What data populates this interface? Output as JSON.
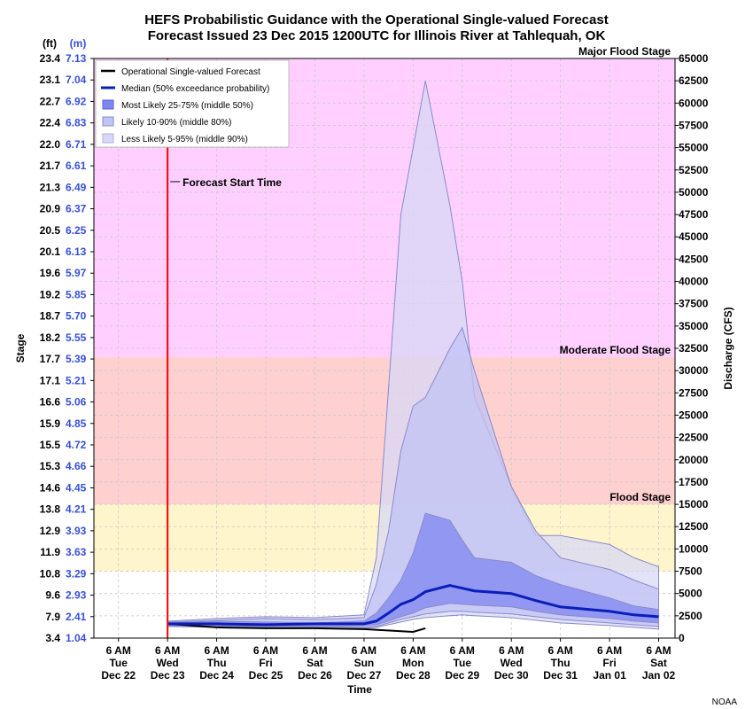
{
  "chart_data": {
    "type": "area",
    "title": "HEFS Probabilistic Guidance with the Operational Single-valued Forecast",
    "subtitle": "Forecast Issued 23 Dec 2015 1200UTC for Illinois River at Tahlequah, OK",
    "xlabel": "Time",
    "ylabel_left": "Stage",
    "ylabel_right": "Discharge (CFS)",
    "left_units": [
      "(ft)",
      "(m)"
    ],
    "credit": "NOAA",
    "xlim": [
      "2015-12-21T18:00",
      "2016-01-02T14:00"
    ],
    "ylim_discharge": [
      0,
      65000
    ],
    "grid": true,
    "legend_position": "top-left",
    "x_ticks": [
      {
        "time": "2015-12-22T06:00",
        "lines": [
          "6 AM",
          "Tue",
          "Dec 22"
        ]
      },
      {
        "time": "2015-12-23T06:00",
        "lines": [
          "6 AM",
          "Wed",
          "Dec 23"
        ]
      },
      {
        "time": "2015-12-24T06:00",
        "lines": [
          "6 AM",
          "Thu",
          "Dec 24"
        ]
      },
      {
        "time": "2015-12-25T06:00",
        "lines": [
          "6 AM",
          "Fri",
          "Dec 25"
        ]
      },
      {
        "time": "2015-12-26T06:00",
        "lines": [
          "6 AM",
          "Sat",
          "Dec 26"
        ]
      },
      {
        "time": "2015-12-27T06:00",
        "lines": [
          "6 AM",
          "Sun",
          "Dec 27"
        ]
      },
      {
        "time": "2015-12-28T06:00",
        "lines": [
          "6 AM",
          "Mon",
          "Dec 28"
        ]
      },
      {
        "time": "2015-12-29T06:00",
        "lines": [
          "6 AM",
          "Tue",
          "Dec 29"
        ]
      },
      {
        "time": "2015-12-30T06:00",
        "lines": [
          "6 AM",
          "Wed",
          "Dec 30"
        ]
      },
      {
        "time": "2015-12-31T06:00",
        "lines": [
          "6 AM",
          "Thu",
          "Dec 31"
        ]
      },
      {
        "time": "2016-01-01T06:00",
        "lines": [
          "6 AM",
          "Fri",
          "Jan 01"
        ]
      },
      {
        "time": "2016-01-02T06:00",
        "lines": [
          "6 AM",
          "Sat",
          "Jan 02"
        ]
      }
    ],
    "right_ticks": [
      0,
      2500,
      5000,
      7500,
      10000,
      12500,
      15000,
      17500,
      20000,
      22500,
      25000,
      27500,
      30000,
      32500,
      35000,
      37500,
      40000,
      42500,
      45000,
      47500,
      50000,
      52500,
      55000,
      57500,
      60000,
      62500,
      65000
    ],
    "left_ticks": [
      {
        "ft": "3.4",
        "m": "1.04"
      },
      {
        "ft": "7.9",
        "m": "2.41"
      },
      {
        "ft": "9.6",
        "m": "2.93"
      },
      {
        "ft": "10.8",
        "m": "3.29"
      },
      {
        "ft": "11.9",
        "m": "3.63"
      },
      {
        "ft": "12.9",
        "m": "3.93"
      },
      {
        "ft": "13.8",
        "m": "4.21"
      },
      {
        "ft": "14.6",
        "m": "4.45"
      },
      {
        "ft": "15.3",
        "m": "4.66"
      },
      {
        "ft": "15.5",
        "m": "4.72"
      },
      {
        "ft": "15.9",
        "m": "4.85"
      },
      {
        "ft": "16.6",
        "m": "5.06"
      },
      {
        "ft": "17.1",
        "m": "5.21"
      },
      {
        "ft": "17.7",
        "m": "5.39"
      },
      {
        "ft": "18.2",
        "m": "5.55"
      },
      {
        "ft": "18.7",
        "m": "5.70"
      },
      {
        "ft": "19.2",
        "m": "5.85"
      },
      {
        "ft": "19.6",
        "m": "5.97"
      },
      {
        "ft": "20.1",
        "m": "6.13"
      },
      {
        "ft": "20.5",
        "m": "6.25"
      },
      {
        "ft": "20.9",
        "m": "6.37"
      },
      {
        "ft": "21.3",
        "m": "6.49"
      },
      {
        "ft": "21.7",
        "m": "6.61"
      },
      {
        "ft": "22.0",
        "m": "6.71"
      },
      {
        "ft": "22.4",
        "m": "6.83"
      },
      {
        "ft": "22.7",
        "m": "6.92"
      },
      {
        "ft": "23.1",
        "m": "7.04"
      },
      {
        "ft": "23.4",
        "m": "7.13"
      }
    ],
    "flood_zones": [
      {
        "label": "Flood Stage",
        "from": 7500,
        "to": 15000,
        "color": "#fff5cc"
      },
      {
        "label": "Moderate Flood Stage",
        "from": 15000,
        "to": 31500,
        "color": "#ffd0d0"
      },
      {
        "label": "Major Flood Stage",
        "from": 31500,
        "to": 65000,
        "color": "#ffd0ff"
      }
    ],
    "forecast_start": {
      "label": "Forecast Start Time",
      "time": "2015-12-23T06:00"
    },
    "legend": [
      "Operational Single-valued Forecast",
      "Median (50% exceedance probability)",
      "Most Likely 25-75% (middle 50%)",
      "Likely 10-90% (middle 80%)",
      "Less Likely 5-95% (middle 90%)"
    ],
    "series": [
      {
        "name": "Operational Single-valued Forecast",
        "kind": "line",
        "color": "#000000",
        "x": [
          "2015-12-23T06:00",
          "2015-12-24T06:00",
          "2015-12-25T06:00",
          "2015-12-26T06:00",
          "2015-12-27T06:00",
          "2015-12-28T06:00",
          "2015-12-28T12:00"
        ],
        "values": [
          1600,
          1200,
          1100,
          1100,
          1000,
          700,
          1100
        ]
      },
      {
        "name": "Median (50% exceedance probability)",
        "kind": "line",
        "color": "#0a1fb8",
        "x": [
          "2015-12-23T06:00",
          "2015-12-24T06:00",
          "2015-12-25T06:00",
          "2015-12-26T06:00",
          "2015-12-27T06:00",
          "2015-12-27T12:00",
          "2015-12-27T18:00",
          "2015-12-28T00:00",
          "2015-12-28T06:00",
          "2015-12-28T12:00",
          "2015-12-29T00:00",
          "2015-12-29T06:00",
          "2015-12-29T12:00",
          "2015-12-30T06:00",
          "2015-12-30T18:00",
          "2015-12-31T06:00",
          "2016-01-01T06:00",
          "2016-01-01T18:00",
          "2016-01-02T06:00"
        ],
        "values": [
          1600,
          1600,
          1500,
          1600,
          1600,
          1900,
          2800,
          3800,
          4300,
          5200,
          5900,
          5600,
          5300,
          5000,
          4200,
          3500,
          3000,
          2600,
          2400
        ]
      },
      {
        "name": "Most Likely 25-75% (middle 50%)",
        "kind": "band",
        "color": "#7f86f0",
        "x": [
          "2015-12-23T06:00",
          "2015-12-24T06:00",
          "2015-12-25T06:00",
          "2015-12-26T06:00",
          "2015-12-27T06:00",
          "2015-12-27T12:00",
          "2015-12-27T18:00",
          "2015-12-28T00:00",
          "2015-12-28T06:00",
          "2015-12-28T12:00",
          "2015-12-29T00:00",
          "2015-12-29T06:00",
          "2015-12-29T12:00",
          "2015-12-30T06:00",
          "2015-12-30T18:00",
          "2015-12-31T06:00",
          "2016-01-01T06:00",
          "2016-01-01T18:00",
          "2016-01-02T06:00"
        ],
        "low": [
          1500,
          1400,
          1300,
          1300,
          1400,
          1500,
          1900,
          2400,
          2800,
          3400,
          3900,
          3800,
          3700,
          3500,
          3000,
          2600,
          2200,
          1900,
          1700
        ],
        "high": [
          1700,
          1900,
          1800,
          1700,
          1900,
          2800,
          4500,
          6500,
          9500,
          14000,
          13200,
          11000,
          9000,
          8500,
          7000,
          6000,
          4500,
          3600,
          3200
        ]
      },
      {
        "name": "Likely 10-90% (middle 80%)",
        "kind": "band",
        "color": "#c0c3f5",
        "x": [
          "2015-12-23T06:00",
          "2015-12-24T06:00",
          "2015-12-25T06:00",
          "2015-12-26T06:00",
          "2015-12-27T06:00",
          "2015-12-27T12:00",
          "2015-12-27T18:00",
          "2015-12-28T00:00",
          "2015-12-28T06:00",
          "2015-12-28T12:00",
          "2015-12-29T00:00",
          "2015-12-29T06:00",
          "2015-12-29T12:00",
          "2015-12-30T06:00",
          "2015-12-30T18:00",
          "2015-12-31T06:00",
          "2016-01-01T06:00",
          "2016-01-01T18:00",
          "2016-01-02T06:00"
        ],
        "low": [
          1400,
          1300,
          1200,
          1200,
          1200,
          1300,
          1700,
          2100,
          2400,
          2700,
          3000,
          3000,
          2900,
          2700,
          2400,
          2100,
          1700,
          1500,
          1300
        ],
        "high": [
          1800,
          2000,
          2200,
          2100,
          2300,
          6000,
          12000,
          21000,
          26000,
          27000,
          32500,
          34800,
          30000,
          17000,
          12000,
          9000,
          7700,
          6500,
          5500
        ]
      },
      {
        "name": "Less Likely 5-95% (middle 90%)",
        "kind": "band",
        "color": "#d8d8f6",
        "x": [
          "2015-12-23T06:00",
          "2015-12-24T06:00",
          "2015-12-25T06:00",
          "2015-12-26T06:00",
          "2015-12-27T06:00",
          "2015-12-27T12:00",
          "2015-12-27T18:00",
          "2015-12-28T00:00",
          "2015-12-28T06:00",
          "2015-12-28T12:00",
          "2015-12-29T00:00",
          "2015-12-29T06:00",
          "2015-12-29T12:00",
          "2015-12-30T06:00",
          "2015-12-30T18:00",
          "2015-12-31T06:00",
          "2016-01-01T06:00",
          "2016-01-01T18:00",
          "2016-01-02T06:00"
        ],
        "low": [
          1300,
          1200,
          1100,
          1100,
          1100,
          1200,
          1500,
          1800,
          2100,
          2300,
          2500,
          2600,
          2500,
          2300,
          2000,
          1700,
          1400,
          1200,
          1000
        ],
        "high": [
          1900,
          2200,
          2400,
          2300,
          2600,
          9000,
          28000,
          47500,
          55000,
          62500,
          48500,
          40000,
          27000,
          17000,
          11500,
          11500,
          10500,
          9000,
          8000
        ]
      }
    ]
  }
}
